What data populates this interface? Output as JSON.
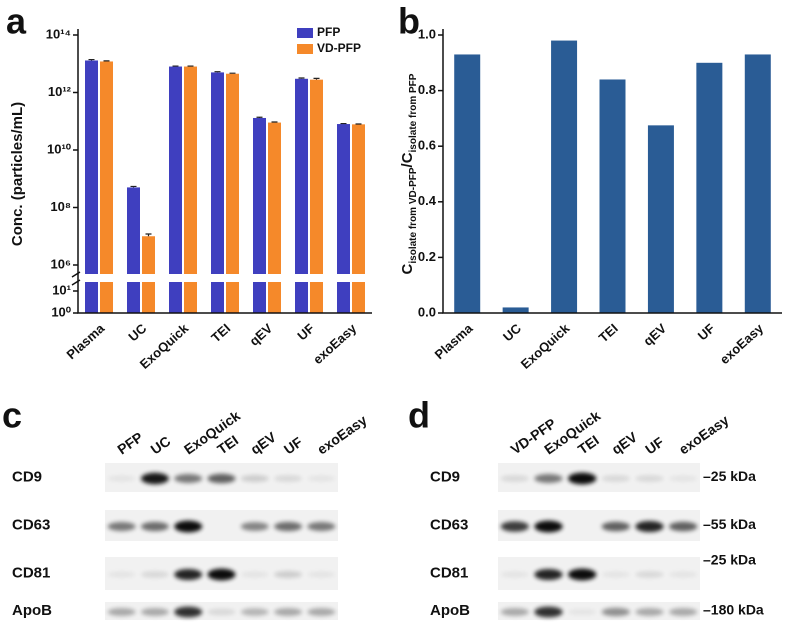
{
  "panel_labels": [
    "a",
    "b",
    "c",
    "d"
  ],
  "chart_data": [
    {
      "type": "bar",
      "ylabel": "Conc. (particles/mL)",
      "categories": [
        "Plasma",
        "UC",
        "ExoQuick",
        "TEI",
        "qEV",
        "UF",
        "exoEasy"
      ],
      "series": [
        {
          "name": "PFP",
          "color": "#3f3fbf",
          "values": [
            13000000000000,
            500000000,
            8000000000000,
            5000000000000,
            130000000000,
            3000000000000,
            80000000000
          ],
          "errors": [
            1000000000000,
            40000000,
            300000000000,
            300000000000,
            8000000000,
            200000000000,
            3000000000
          ]
        },
        {
          "name": "VD-PFP",
          "color": "#f5892a",
          "values": [
            12000000000000,
            10000000,
            8000000000000,
            4500000000000,
            90000000000,
            2800000000000,
            78000000000
          ],
          "errors": [
            600000000000,
            2000000,
            300000000000,
            200000000000,
            4000000000,
            300000000000,
            2000000000
          ]
        }
      ],
      "log_scale": true,
      "ylim": [
        1,
        100000000000000
      ],
      "axis_break": [
        10,
        1000000
      ],
      "yticks": [
        {
          "value": 1,
          "label": "10⁰"
        },
        {
          "value": 10,
          "label": "10¹"
        },
        {
          "value": 1000000,
          "label": "10⁶"
        },
        {
          "value": 100000000,
          "label": "10⁸"
        },
        {
          "value": 10000000000,
          "label": "10¹⁰"
        },
        {
          "value": 1000000000000,
          "label": "10¹²"
        },
        {
          "value": 100000000000000,
          "label": "10¹⁴"
        }
      ],
      "legend": "upper right"
    },
    {
      "type": "bar",
      "ylabel": [
        {
          "text": "C",
          "sub": "isolate from VD-PFP"
        },
        {
          "text": "/C",
          "sub": "isolate from PFP"
        }
      ],
      "categories": [
        "Plasma",
        "UC",
        "ExoQuick",
        "TEI",
        "qEV",
        "UF",
        "exoEasy"
      ],
      "values": [
        0.93,
        0.02,
        0.98,
        0.84,
        0.675,
        0.9,
        0.93
      ],
      "color": "#2a5c95",
      "ylim": [
        0,
        1
      ],
      "yticks": [
        {
          "value": 0,
          "label": "0.0"
        },
        0.2,
        0.4,
        0.6,
        0.8,
        {
          "value": 1,
          "label": "1.0"
        }
      ]
    }
  ],
  "blots": [
    {
      "columns": [
        "PFP",
        "UC",
        "ExoQuick",
        "TEI",
        "qEV",
        "UF",
        "exoEasy"
      ],
      "rows": [
        "CD9",
        "CD63",
        "CD81",
        "ApoB"
      ]
    },
    {
      "columns": [
        "VD-PFP",
        "ExoQuick",
        "TEI",
        "qEV",
        "UF",
        "exoEasy"
      ],
      "rows": [
        "CD9",
        "CD63",
        "CD81",
        "ApoB"
      ],
      "highlight_column": 0,
      "highlight_color": "#e03a3a",
      "markers": [
        "–25 kDa",
        "–55 kDa",
        "–25 kDa",
        "–180 kDa"
      ]
    }
  ]
}
